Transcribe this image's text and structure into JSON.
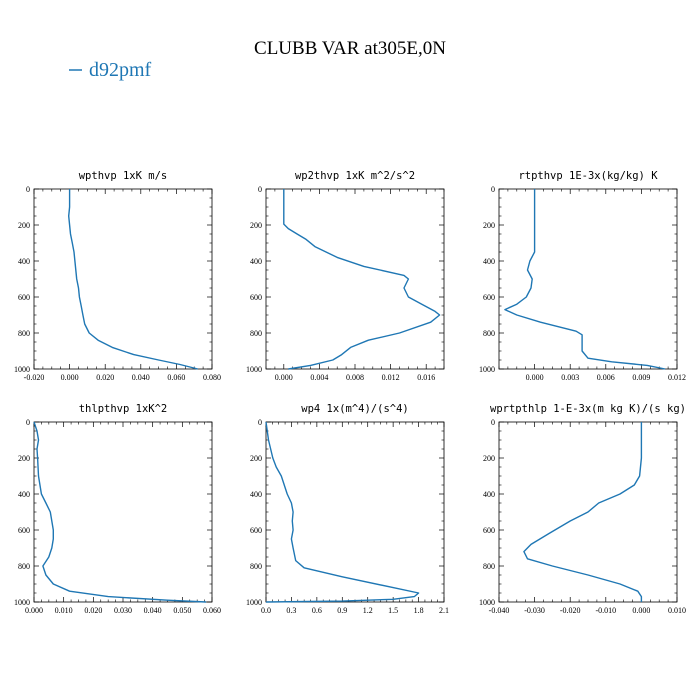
{
  "figure": {
    "title": "CLUBB VAR at305E,0N",
    "legend": {
      "label": "d92pmf",
      "color": "#1f77b4"
    }
  },
  "chart_data": [
    {
      "type": "line",
      "title": "wpthvp   1xK m/s",
      "xlim": [
        -0.02,
        0.08
      ],
      "ylim": [
        1000,
        0
      ],
      "xticks": [
        "-0.020",
        "0.000",
        "0.020",
        "0.040",
        "0.060",
        "0.080"
      ],
      "yticks": [
        "0",
        "200",
        "400",
        "600",
        "800",
        "1000"
      ],
      "series": [
        {
          "name": "d92pmf",
          "color": "#1f77b4",
          "x": [
            0.0,
            0.0,
            -0.0005,
            0.0,
            0.0005,
            0.0015,
            0.0025,
            0.003,
            0.0035,
            0.004,
            0.005,
            0.0055,
            0.0065,
            0.0075,
            0.0085,
            0.011,
            0.016,
            0.024,
            0.036,
            0.05,
            0.062,
            0.072
          ],
          "y": [
            0,
            100,
            150,
            200,
            250,
            300,
            350,
            400,
            450,
            500,
            550,
            600,
            650,
            700,
            750,
            800,
            840,
            880,
            920,
            950,
            975,
            1000
          ]
        }
      ]
    },
    {
      "type": "line",
      "title": "wp2thvp   1xK m^2/s^2",
      "xlim": [
        -0.002,
        0.018
      ],
      "ylim": [
        1000,
        0
      ],
      "xticks": [
        "0.000",
        "0.004",
        "0.008",
        "0.012",
        "0.016"
      ],
      "yticks": [
        "0",
        "200",
        "400",
        "600",
        "800",
        "1000"
      ],
      "series": [
        {
          "name": "d92pmf",
          "color": "#1f77b4",
          "x": [
            0.0,
            0.0,
            0.0,
            0.0005,
            0.0015,
            0.0025,
            0.0035,
            0.006,
            0.009,
            0.0135,
            0.014,
            0.0135,
            0.014,
            0.0155,
            0.017,
            0.0175,
            0.0165,
            0.013,
            0.0095,
            0.0075,
            0.0065,
            0.0055,
            0.003,
            0.0005
          ],
          "y": [
            0,
            100,
            195,
            220,
            250,
            280,
            320,
            380,
            430,
            480,
            500,
            550,
            600,
            640,
            680,
            700,
            740,
            800,
            840,
            880,
            920,
            950,
            980,
            1000
          ]
        }
      ]
    },
    {
      "type": "line",
      "title": "rtpthvp   1E-3x(kg/kg) K",
      "xlim": [
        -0.003,
        0.012
      ],
      "ylim": [
        1000,
        0
      ],
      "xticks": [
        "0.000",
        "0.003",
        "0.006",
        "0.009",
        "0.012"
      ],
      "yticks": [
        "0",
        "200",
        "400",
        "600",
        "800",
        "1000"
      ],
      "series": [
        {
          "name": "d92pmf",
          "color": "#1f77b4",
          "x": [
            0.0,
            0.0,
            0.0,
            0.0,
            0.0,
            -0.0004,
            -0.0006,
            -0.0002,
            -0.0003,
            -0.0007,
            -0.0015,
            -0.0025,
            -0.0015,
            0.0005,
            0.0035,
            0.004,
            0.004,
            0.0045,
            0.0065,
            0.0095,
            0.011
          ],
          "y": [
            0,
            100,
            200,
            300,
            350,
            400,
            450,
            500,
            550,
            600,
            640,
            670,
            700,
            740,
            790,
            810,
            900,
            940,
            960,
            980,
            1000
          ]
        }
      ]
    },
    {
      "type": "line",
      "title": "thlpthvp   1xK^2",
      "xlim": [
        0.0,
        0.06
      ],
      "ylim": [
        1000,
        0
      ],
      "xticks": [
        "0.000",
        "0.010",
        "0.020",
        "0.030",
        "0.040",
        "0.050",
        "0.060"
      ],
      "yticks": [
        "0",
        "200",
        "400",
        "600",
        "800",
        "1000"
      ],
      "series": [
        {
          "name": "d92pmf",
          "color": "#1f77b4",
          "x": [
            0.0,
            0.001,
            0.0015,
            0.001,
            0.0012,
            0.0015,
            0.0025,
            0.004,
            0.0055,
            0.006,
            0.0065,
            0.0065,
            0.006,
            0.005,
            0.003,
            0.004,
            0.0065,
            0.012,
            0.025,
            0.045,
            0.058
          ],
          "y": [
            0,
            50,
            100,
            150,
            200,
            300,
            400,
            450,
            500,
            550,
            600,
            650,
            700,
            750,
            800,
            850,
            900,
            940,
            970,
            990,
            1000
          ]
        }
      ]
    },
    {
      "type": "line",
      "title": "wp4   1x(m^4)/(s^4)",
      "xlim": [
        0.0,
        2.1
      ],
      "ylim": [
        1000,
        0
      ],
      "xticks": [
        "0.0",
        "0.3",
        "0.6",
        "0.9",
        "1.2",
        "1.5",
        "1.8",
        "2.1"
      ],
      "yticks": [
        "0",
        "200",
        "400",
        "600",
        "800",
        "1000"
      ],
      "series": [
        {
          "name": "d92pmf",
          "color": "#1f77b4",
          "x": [
            0.0,
            0.03,
            0.08,
            0.12,
            0.18,
            0.25,
            0.3,
            0.32,
            0.31,
            0.32,
            0.3,
            0.32,
            0.35,
            0.45,
            0.9,
            1.5,
            1.8,
            1.75,
            1.5,
            0.9,
            0.0
          ],
          "y": [
            0,
            100,
            200,
            250,
            300,
            400,
            450,
            500,
            550,
            600,
            650,
            700,
            770,
            810,
            860,
            920,
            950,
            970,
            985,
            995,
            1000
          ]
        }
      ]
    },
    {
      "type": "line",
      "title": "wprtpthlp   1-E-3x(m kg K)/(s kg)",
      "xlim": [
        -0.04,
        0.01
      ],
      "ylim": [
        1000,
        0
      ],
      "xticks": [
        "-0.040",
        "-0.030",
        "-0.020",
        "-0.010",
        "0.000",
        "0.010"
      ],
      "yticks": [
        "0",
        "200",
        "400",
        "600",
        "800",
        "1000"
      ],
      "series": [
        {
          "name": "d92pmf",
          "color": "#1f77b4",
          "x": [
            0.0,
            0.0,
            0.0,
            -0.0005,
            -0.002,
            -0.006,
            -0.012,
            -0.015,
            -0.02,
            -0.026,
            -0.031,
            -0.033,
            -0.032,
            -0.025,
            -0.015,
            -0.006,
            -0.001,
            0.0,
            0.0
          ],
          "y": [
            0,
            100,
            200,
            300,
            350,
            400,
            450,
            500,
            550,
            620,
            680,
            720,
            760,
            800,
            850,
            900,
            940,
            970,
            1000
          ]
        }
      ]
    }
  ]
}
